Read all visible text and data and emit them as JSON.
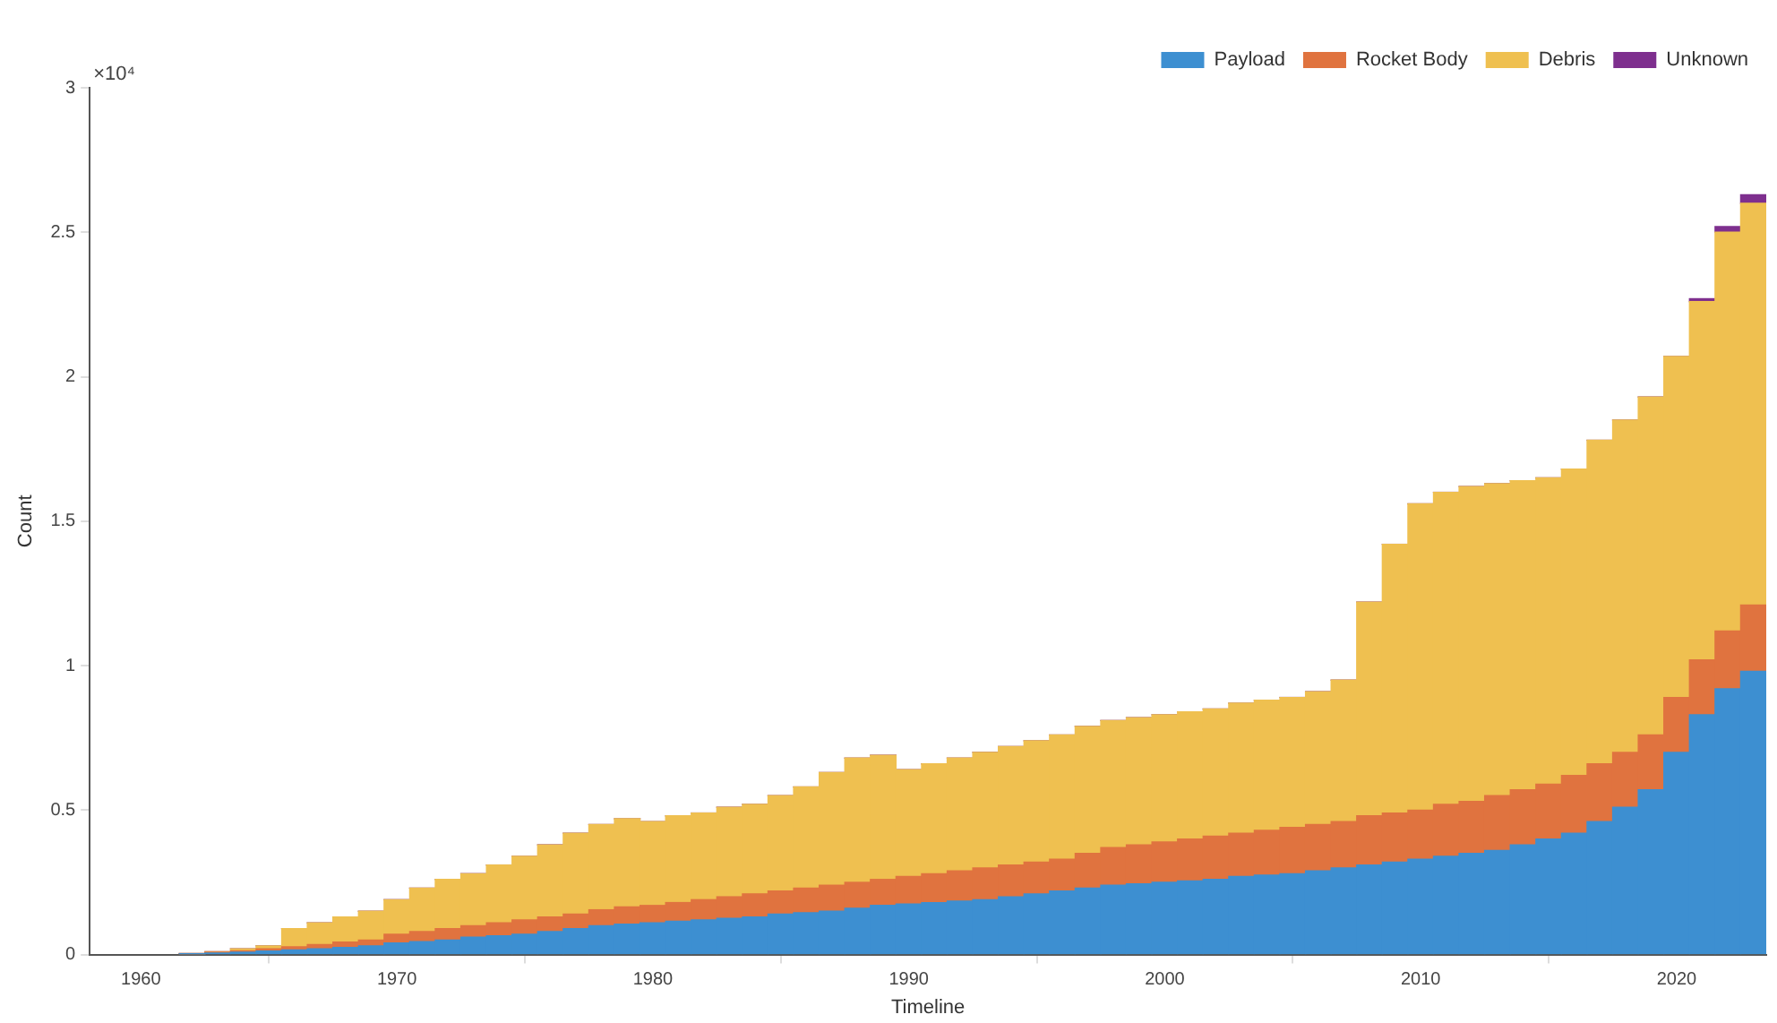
{
  "chart_data": {
    "type": "bar",
    "stacked": true,
    "xlabel": "Timeline",
    "ylabel": "Count",
    "annotations": [
      "×10⁴"
    ],
    "x": [
      1962,
      1963,
      1964,
      1965,
      1966,
      1967,
      1968,
      1969,
      1970,
      1971,
      1972,
      1973,
      1974,
      1975,
      1976,
      1977,
      1978,
      1979,
      1980,
      1981,
      1982,
      1983,
      1984,
      1985,
      1986,
      1987,
      1988,
      1989,
      1990,
      1991,
      1992,
      1993,
      1994,
      1995,
      1996,
      1997,
      1998,
      1999,
      2000,
      2001,
      2002,
      2003,
      2004,
      2005,
      2006,
      2007,
      2008,
      2009,
      2010,
      2011,
      2012,
      2013,
      2014,
      2015,
      2016,
      2017,
      2018,
      2019,
      2020,
      2021,
      2022,
      2023
    ],
    "xlim": [
      1958,
      2023.5
    ],
    "xticks": [
      1960,
      1970,
      1980,
      1990,
      2000,
      2010,
      2020
    ],
    "ylim": [
      0,
      3
    ],
    "yticks": [
      0,
      0.5,
      1,
      1.5,
      2,
      2.5,
      3
    ],
    "grid": false,
    "legend": "top right",
    "series": [
      {
        "name": "Payload",
        "color": "#3d8fd1",
        "values": [
          0.002,
          0.005,
          0.008,
          0.012,
          0.016,
          0.02,
          0.025,
          0.03,
          0.04,
          0.045,
          0.05,
          0.06,
          0.065,
          0.07,
          0.08,
          0.09,
          0.1,
          0.105,
          0.11,
          0.115,
          0.12,
          0.125,
          0.13,
          0.14,
          0.145,
          0.15,
          0.16,
          0.17,
          0.175,
          0.18,
          0.185,
          0.19,
          0.2,
          0.21,
          0.22,
          0.23,
          0.24,
          0.245,
          0.25,
          0.255,
          0.26,
          0.27,
          0.275,
          0.28,
          0.29,
          0.3,
          0.31,
          0.32,
          0.33,
          0.34,
          0.35,
          0.36,
          0.38,
          0.4,
          0.42,
          0.46,
          0.51,
          0.57,
          0.7,
          0.83,
          0.92,
          0.98
        ]
      },
      {
        "name": "Rocket Body",
        "color": "#e0733f",
        "values": [
          0.001,
          0.003,
          0.005,
          0.008,
          0.011,
          0.015,
          0.018,
          0.02,
          0.03,
          0.035,
          0.04,
          0.04,
          0.045,
          0.05,
          0.05,
          0.05,
          0.055,
          0.06,
          0.06,
          0.065,
          0.07,
          0.075,
          0.08,
          0.08,
          0.085,
          0.09,
          0.09,
          0.09,
          0.095,
          0.1,
          0.105,
          0.11,
          0.11,
          0.11,
          0.11,
          0.12,
          0.13,
          0.135,
          0.14,
          0.145,
          0.15,
          0.15,
          0.155,
          0.16,
          0.16,
          0.16,
          0.17,
          0.17,
          0.17,
          0.18,
          0.18,
          0.19,
          0.19,
          0.19,
          0.2,
          0.2,
          0.19,
          0.19,
          0.19,
          0.19,
          0.2,
          0.23
        ]
      },
      {
        "name": "Debris",
        "color": "#efc050",
        "values": [
          0.001,
          0.002,
          0.007,
          0.01,
          0.063,
          0.075,
          0.087,
          0.1,
          0.12,
          0.15,
          0.17,
          0.18,
          0.2,
          0.22,
          0.25,
          0.28,
          0.295,
          0.305,
          0.29,
          0.3,
          0.3,
          0.31,
          0.31,
          0.33,
          0.35,
          0.39,
          0.43,
          0.43,
          0.37,
          0.38,
          0.39,
          0.4,
          0.41,
          0.42,
          0.43,
          0.44,
          0.44,
          0.44,
          0.44,
          0.44,
          0.44,
          0.45,
          0.45,
          0.45,
          0.46,
          0.49,
          0.74,
          0.93,
          1.06,
          1.08,
          1.09,
          1.08,
          1.07,
          1.06,
          1.06,
          1.12,
          1.15,
          1.17,
          1.18,
          1.24,
          1.38,
          1.39
        ]
      },
      {
        "name": "Unknown",
        "color": "#7e2f8e",
        "values": [
          0,
          0,
          0,
          0,
          0,
          0,
          0,
          0,
          0,
          0,
          0,
          0,
          0,
          0,
          0,
          0,
          0,
          0,
          0,
          0,
          0,
          0,
          0,
          0,
          0,
          0,
          0,
          0,
          0,
          0,
          0,
          0,
          0,
          0,
          0,
          0,
          0,
          0,
          0,
          0,
          0,
          0,
          0,
          0,
          0,
          0,
          0,
          0,
          0,
          0,
          0,
          0,
          0,
          0,
          0,
          0,
          0,
          0,
          0,
          0.01,
          0.02,
          0.03
        ]
      }
    ]
  }
}
